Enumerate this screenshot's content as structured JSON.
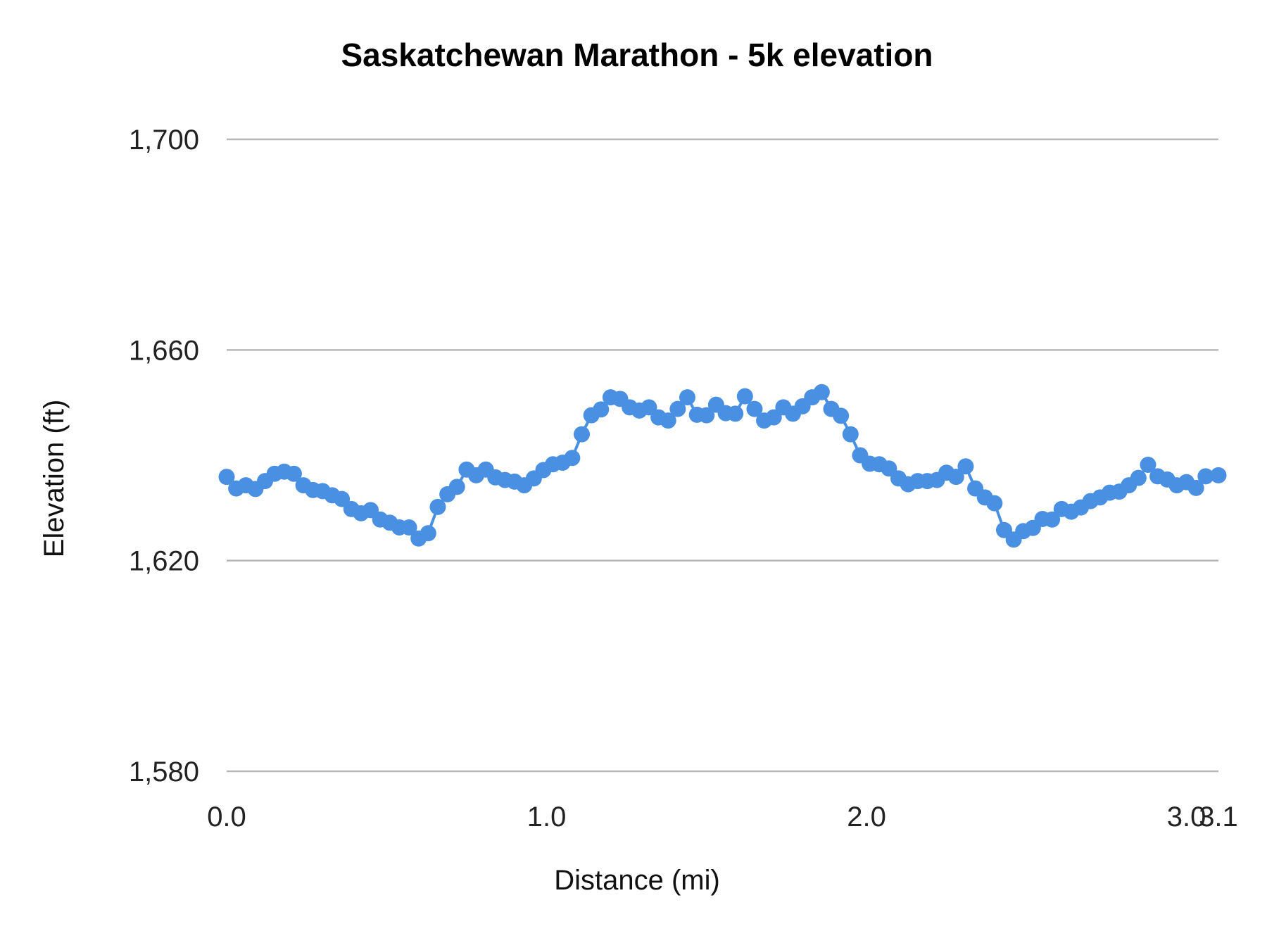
{
  "chart_data": {
    "type": "line",
    "title": "Saskatchewan Marathon - 5k elevation",
    "xlabel": "Distance (mi)",
    "ylabel": "Elevation (ft)",
    "ylim": [
      1580,
      1700
    ],
    "xlim": [
      0,
      3.1
    ],
    "y_ticks": [
      "1,580",
      "1,620",
      "1,660",
      "1,700"
    ],
    "y_tick_values": [
      1580,
      1620,
      1660,
      1700
    ],
    "x_ticks": [
      "0.0",
      "1.0",
      "2.0",
      "3.0",
      "3.1"
    ],
    "x_tick_values": [
      0,
      1,
      2,
      3,
      3.1
    ],
    "grid": true,
    "markers": true,
    "series_color": "#4a90e2",
    "grid_color": "#b7b7b7",
    "x": [
      0.0,
      0.03,
      0.06,
      0.09,
      0.12,
      0.15,
      0.18,
      0.21,
      0.24,
      0.27,
      0.3,
      0.33,
      0.36,
      0.39,
      0.42,
      0.45,
      0.48,
      0.51,
      0.54,
      0.57,
      0.6,
      0.63,
      0.66,
      0.69,
      0.72,
      0.75,
      0.78,
      0.81,
      0.84,
      0.87,
      0.9,
      0.93,
      0.96,
      0.99,
      1.02,
      1.05,
      1.08,
      1.11,
      1.14,
      1.17,
      1.2,
      1.23,
      1.26,
      1.29,
      1.32,
      1.35,
      1.38,
      1.41,
      1.44,
      1.47,
      1.5,
      1.53,
      1.56,
      1.59,
      1.62,
      1.65,
      1.68,
      1.71,
      1.74,
      1.77,
      1.8,
      1.83,
      1.86,
      1.89,
      1.92,
      1.95,
      1.98,
      2.01,
      2.04,
      2.07,
      2.1,
      2.13,
      2.16,
      2.19,
      2.22,
      2.25,
      2.28,
      2.31,
      2.34,
      2.37,
      2.4,
      2.43,
      2.46,
      2.49,
      2.52,
      2.55,
      2.58,
      2.61,
      2.64,
      2.67,
      2.7,
      2.73,
      2.76,
      2.79,
      2.82,
      2.85,
      2.88,
      2.91,
      2.94,
      2.97,
      3.0,
      3.03,
      3.06,
      3.1
    ],
    "y": [
      1635.9,
      1633.7,
      1634.3,
      1633.6,
      1635.1,
      1636.5,
      1636.9,
      1636.5,
      1634.3,
      1633.4,
      1633.2,
      1632.4,
      1631.7,
      1629.8,
      1629.0,
      1629.6,
      1627.8,
      1627.2,
      1626.3,
      1626.3,
      1624.2,
      1625.2,
      1630.2,
      1632.6,
      1634.0,
      1637.3,
      1636.2,
      1637.3,
      1635.8,
      1635.3,
      1635.0,
      1634.3,
      1635.6,
      1637.2,
      1638.3,
      1638.6,
      1639.5,
      1644.0,
      1647.6,
      1648.7,
      1651.0,
      1650.7,
      1649.1,
      1648.5,
      1649.1,
      1647.2,
      1646.6,
      1648.8,
      1651.0,
      1647.7,
      1647.6,
      1649.6,
      1648.0,
      1647.9,
      1651.2,
      1648.8,
      1646.6,
      1647.2,
      1649.1,
      1647.9,
      1649.3,
      1651.0,
      1652.0,
      1648.8,
      1647.5,
      1644.0,
      1640.0,
      1638.4,
      1638.3,
      1637.5,
      1635.6,
      1634.5,
      1635.1,
      1635.1,
      1635.3,
      1636.7,
      1635.9,
      1637.9,
      1633.7,
      1632.0,
      1630.9,
      1625.8,
      1624.0,
      1625.6,
      1626.2,
      1627.9,
      1627.8,
      1629.8,
      1629.3,
      1630.1,
      1631.3,
      1632.0,
      1632.9,
      1633.1,
      1634.3,
      1635.7,
      1638.2,
      1636.0,
      1635.4,
      1634.3,
      1634.9,
      1633.8,
      1636.0,
      1636.2
    ]
  }
}
